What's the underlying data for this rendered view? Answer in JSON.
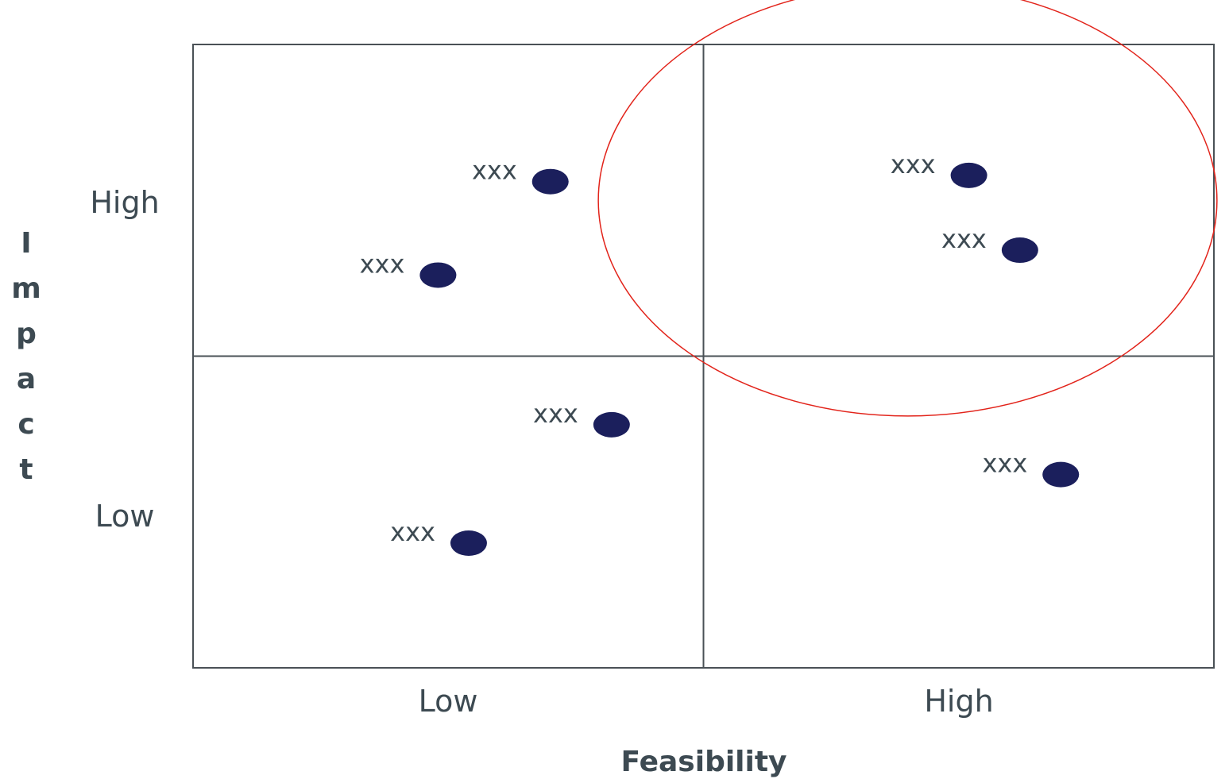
{
  "chart_data": {
    "type": "scatter",
    "chart_kind": "2x2 quadrant matrix",
    "title": "",
    "xlabel": "Feasibility",
    "ylabel": "Impact",
    "xlim": [
      0,
      100
    ],
    "ylim": [
      0,
      100
    ],
    "x_tick_labels": [
      "Low",
      "High"
    ],
    "y_tick_labels": [
      "High",
      "Low"
    ],
    "grid": false,
    "points": [
      {
        "label": "xxx",
        "x": 35,
        "y": 78
      },
      {
        "label": "xxx",
        "x": 24,
        "y": 63
      },
      {
        "label": "xxx",
        "x": 76,
        "y": 79
      },
      {
        "label": "xxx",
        "x": 81,
        "y": 67
      },
      {
        "label": "xxx",
        "x": 41,
        "y": 39
      },
      {
        "label": "xxx",
        "x": 27,
        "y": 20
      },
      {
        "label": "xxx",
        "x": 85,
        "y": 31
      }
    ],
    "highlight": {
      "shape": "ellipse",
      "center": [
        70,
        75
      ],
      "radii": [
        30.3,
        34.6
      ]
    },
    "colors": {
      "points": "#1b1f5c",
      "highlight": "#e2231a",
      "axis": "#4a5156",
      "text": "#3d4a52"
    }
  }
}
